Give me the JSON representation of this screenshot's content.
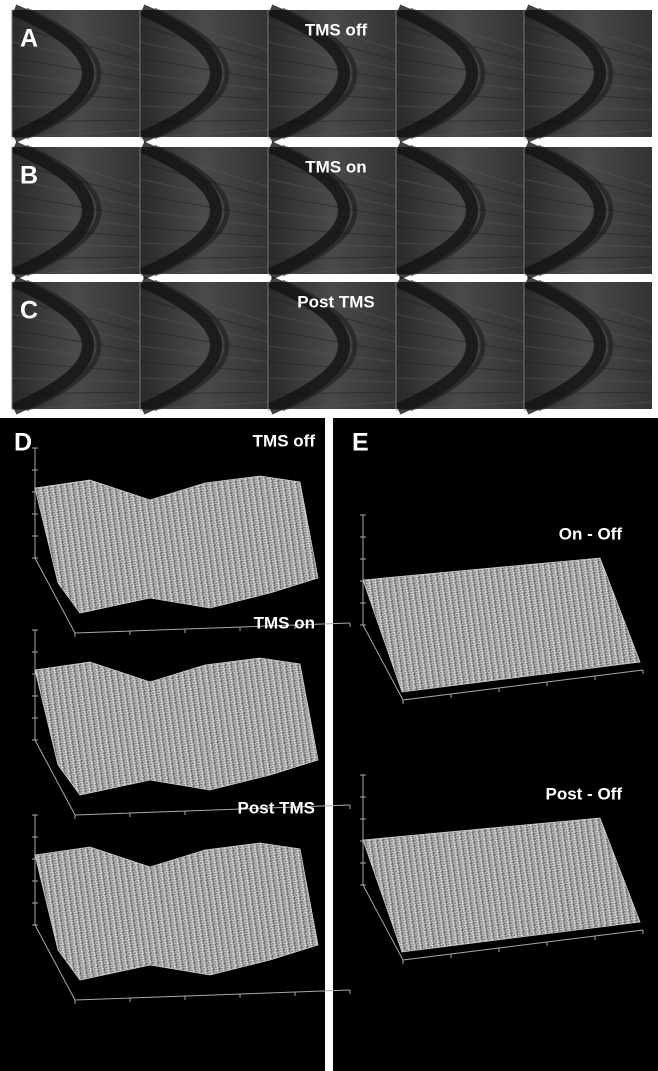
{
  "strips": [
    {
      "letter": "A",
      "label": "TMS off"
    },
    {
      "letter": "B",
      "label": "TMS on"
    },
    {
      "letter": "C",
      "label": "Post TMS"
    }
  ],
  "panel_d": {
    "letter": "D",
    "plots": [
      "TMS off",
      "TMS on",
      "Post TMS"
    ]
  },
  "panel_e": {
    "letter": "E",
    "plots": [
      "On - Off",
      "Post - Off"
    ]
  }
}
